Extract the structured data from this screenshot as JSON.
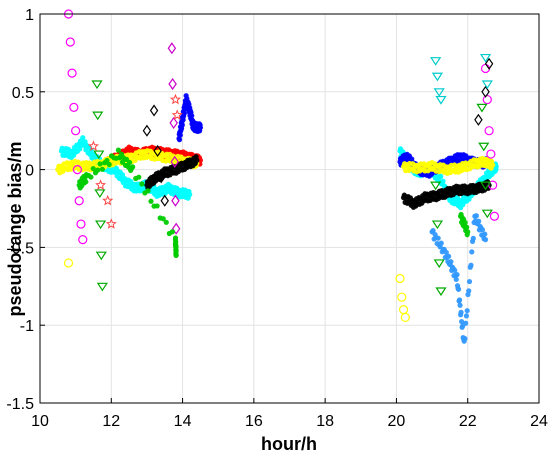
{
  "chart_data": {
    "type": "scatter",
    "title": "",
    "xlabel": "hour/h",
    "ylabel": "pseudorange bias/m",
    "xlim": [
      10,
      24
    ],
    "ylim": [
      -1.5,
      1
    ],
    "xticks": [
      10,
      12,
      14,
      16,
      18,
      20,
      22,
      24
    ],
    "xtick_labels": [
      "10",
      "12",
      "14",
      "16",
      "18",
      "20",
      "22",
      "24"
    ],
    "yticks": [
      -1.5,
      -1,
      -0.5,
      0,
      0.5,
      1
    ],
    "ytick_labels": [
      "-1.5",
      "-1",
      "-0.5",
      "0",
      "0.5",
      "1"
    ],
    "grid": true,
    "legend": "none",
    "series": [
      {
        "color": "#00ffff",
        "marker": "point",
        "values": [
          [
            10.6,
            0.12
          ],
          [
            10.9,
            0.1
          ],
          [
            11.2,
            0.18
          ],
          [
            11.5,
            0.08
          ],
          [
            11.8,
            0.02
          ],
          [
            12.1,
            0.0
          ],
          [
            12.4,
            -0.08
          ],
          [
            12.7,
            -0.12
          ],
          [
            13.0,
            -0.1
          ],
          [
            13.3,
            -0.15
          ],
          [
            13.6,
            -0.12
          ],
          [
            13.9,
            -0.15
          ],
          [
            14.2,
            -0.16
          ],
          [
            20.1,
            0.12
          ],
          [
            20.3,
            0.05
          ],
          [
            20.6,
            -0.02
          ],
          [
            20.9,
            0.0
          ],
          [
            21.2,
            -0.05
          ],
          [
            21.5,
            -0.18
          ],
          [
            21.8,
            -0.22
          ],
          [
            22.1,
            -0.15
          ],
          [
            22.4,
            -0.08
          ],
          [
            22.7,
            0.0
          ],
          [
            22.8,
            0.02
          ]
        ]
      },
      {
        "color": "#0000ff",
        "marker": "point",
        "values": [
          [
            13.9,
            0.2
          ],
          [
            14.0,
            0.32
          ],
          [
            14.1,
            0.45
          ],
          [
            14.2,
            0.38
          ],
          [
            14.3,
            0.28
          ],
          [
            14.4,
            0.27
          ],
          [
            14.5,
            0.27
          ],
          [
            20.1,
            0.05
          ],
          [
            20.3,
            0.08
          ],
          [
            20.6,
            0.0
          ],
          [
            20.9,
            -0.02
          ],
          [
            21.2,
            0.02
          ],
          [
            21.5,
            0.05
          ],
          [
            21.8,
            0.08
          ],
          [
            22.1,
            0.05
          ],
          [
            22.4,
            0.04
          ],
          [
            22.6,
            0.05
          ]
        ]
      },
      {
        "color": "#ff0000",
        "marker": "point",
        "values": [
          [
            11.9,
            0.05
          ],
          [
            12.2,
            0.08
          ],
          [
            12.5,
            0.12
          ],
          [
            12.8,
            0.1
          ],
          [
            13.1,
            0.12
          ],
          [
            13.4,
            0.11
          ],
          [
            13.7,
            0.1
          ],
          [
            14.0,
            0.09
          ],
          [
            14.3,
            0.07
          ],
          [
            14.5,
            0.06
          ]
        ]
      },
      {
        "color": "#ffff00",
        "marker": "point",
        "values": [
          [
            10.5,
            0.0
          ],
          [
            10.9,
            0.03
          ],
          [
            11.3,
            0.02
          ],
          [
            11.7,
            0.03
          ],
          [
            12.1,
            0.06
          ],
          [
            12.5,
            0.07
          ],
          [
            12.9,
            0.1
          ],
          [
            13.3,
            0.09
          ],
          [
            13.7,
            0.07
          ],
          [
            14.1,
            0.05
          ],
          [
            14.4,
            0.04
          ],
          [
            20.2,
            0.02
          ],
          [
            20.6,
            0.01
          ],
          [
            21.0,
            0.02
          ],
          [
            21.4,
            0.0
          ],
          [
            21.8,
            0.01
          ],
          [
            22.2,
            0.04
          ],
          [
            22.5,
            0.05
          ],
          [
            22.7,
            0.03
          ]
        ]
      },
      {
        "color": "#000000",
        "marker": "point",
        "values": [
          [
            13.0,
            -0.1
          ],
          [
            13.2,
            -0.06
          ],
          [
            13.5,
            -0.02
          ],
          [
            13.8,
            0.0
          ],
          [
            14.1,
            0.03
          ],
          [
            14.4,
            0.06
          ],
          [
            20.2,
            -0.18
          ],
          [
            20.5,
            -0.22
          ],
          [
            20.8,
            -0.18
          ],
          [
            21.1,
            -0.17
          ],
          [
            21.4,
            -0.15
          ],
          [
            21.7,
            -0.13
          ],
          [
            22.0,
            -0.13
          ],
          [
            22.3,
            -0.12
          ],
          [
            22.6,
            -0.1
          ]
        ]
      },
      {
        "color": "#ff00ff",
        "marker": "circle",
        "values": [
          [
            10.8,
            1.0
          ],
          [
            10.85,
            0.82
          ],
          [
            10.9,
            0.62
          ],
          [
            10.95,
            0.4
          ],
          [
            11.0,
            0.25
          ],
          [
            11.05,
            0.0
          ],
          [
            11.1,
            -0.2
          ],
          [
            11.15,
            -0.35
          ],
          [
            11.2,
            -0.45
          ],
          [
            22.5,
            0.65
          ],
          [
            22.55,
            0.45
          ],
          [
            22.6,
            0.25
          ],
          [
            22.65,
            0.1
          ],
          [
            22.7,
            -0.1
          ],
          [
            22.75,
            -0.3
          ]
        ]
      },
      {
        "color": "#00aa00",
        "marker": "triangle-down",
        "values": [
          [
            11.6,
            0.55
          ],
          [
            11.62,
            0.35
          ],
          [
            11.65,
            0.1
          ],
          [
            11.68,
            -0.15
          ],
          [
            11.7,
            -0.35
          ],
          [
            11.72,
            -0.55
          ],
          [
            11.75,
            -0.75
          ],
          [
            21.1,
            -0.1
          ],
          [
            21.15,
            -0.35
          ],
          [
            21.2,
            -0.6
          ],
          [
            21.25,
            -0.78
          ],
          [
            22.4,
            0.4
          ],
          [
            22.45,
            0.15
          ],
          [
            22.5,
            -0.1
          ],
          [
            22.55,
            -0.28
          ]
        ]
      },
      {
        "color": "#ffff00",
        "marker": "circle",
        "values": [
          [
            10.8,
            -0.6
          ],
          [
            20.1,
            -0.7
          ],
          [
            20.15,
            -0.82
          ],
          [
            20.2,
            -0.9
          ],
          [
            20.25,
            -0.95
          ]
        ]
      },
      {
        "color": "#000000",
        "marker": "diamond",
        "values": [
          [
            13.0,
            0.25
          ],
          [
            13.2,
            0.38
          ],
          [
            13.3,
            0.12
          ],
          [
            13.4,
            -0.05
          ],
          [
            13.5,
            -0.2
          ],
          [
            22.3,
            0.32
          ],
          [
            22.5,
            0.5
          ],
          [
            22.6,
            0.68
          ]
        ]
      },
      {
        "color": "#cc00cc",
        "marker": "diamond",
        "values": [
          [
            13.7,
            0.78
          ],
          [
            13.72,
            0.55
          ],
          [
            13.75,
            0.3
          ],
          [
            13.78,
            0.05
          ],
          [
            13.8,
            -0.2
          ],
          [
            13.82,
            -0.38
          ]
        ]
      },
      {
        "color": "#00cccc",
        "marker": "triangle-down",
        "values": [
          [
            21.1,
            0.7
          ],
          [
            21.15,
            0.6
          ],
          [
            21.2,
            0.5
          ],
          [
            21.25,
            0.45
          ],
          [
            22.5,
            0.72
          ],
          [
            22.55,
            0.55
          ]
        ]
      },
      {
        "color": "#ff4444",
        "marker": "star",
        "values": [
          [
            11.5,
            0.15
          ],
          [
            11.7,
            -0.1
          ],
          [
            11.9,
            -0.2
          ],
          [
            12.0,
            -0.35
          ],
          [
            13.8,
            0.45
          ],
          [
            13.85,
            0.35
          ]
        ]
      },
      {
        "color": "#00cc00",
        "marker": "point",
        "values": [
          [
            11.1,
            -0.1
          ],
          [
            11.3,
            -0.05
          ],
          [
            12.2,
            0.1
          ],
          [
            12.6,
            0.0
          ],
          [
            13.8,
            -0.45
          ],
          [
            13.82,
            -0.55
          ],
          [
            21.8,
            -0.3
          ],
          [
            22.0,
            -0.4
          ]
        ]
      },
      {
        "color": "#3399ff",
        "marker": "point",
        "values": [
          [
            21.0,
            -0.4
          ],
          [
            21.4,
            -0.55
          ],
          [
            21.7,
            -0.7
          ],
          [
            21.9,
            -1.12
          ],
          [
            22.2,
            -0.3
          ],
          [
            22.5,
            -0.45
          ]
        ]
      }
    ]
  }
}
